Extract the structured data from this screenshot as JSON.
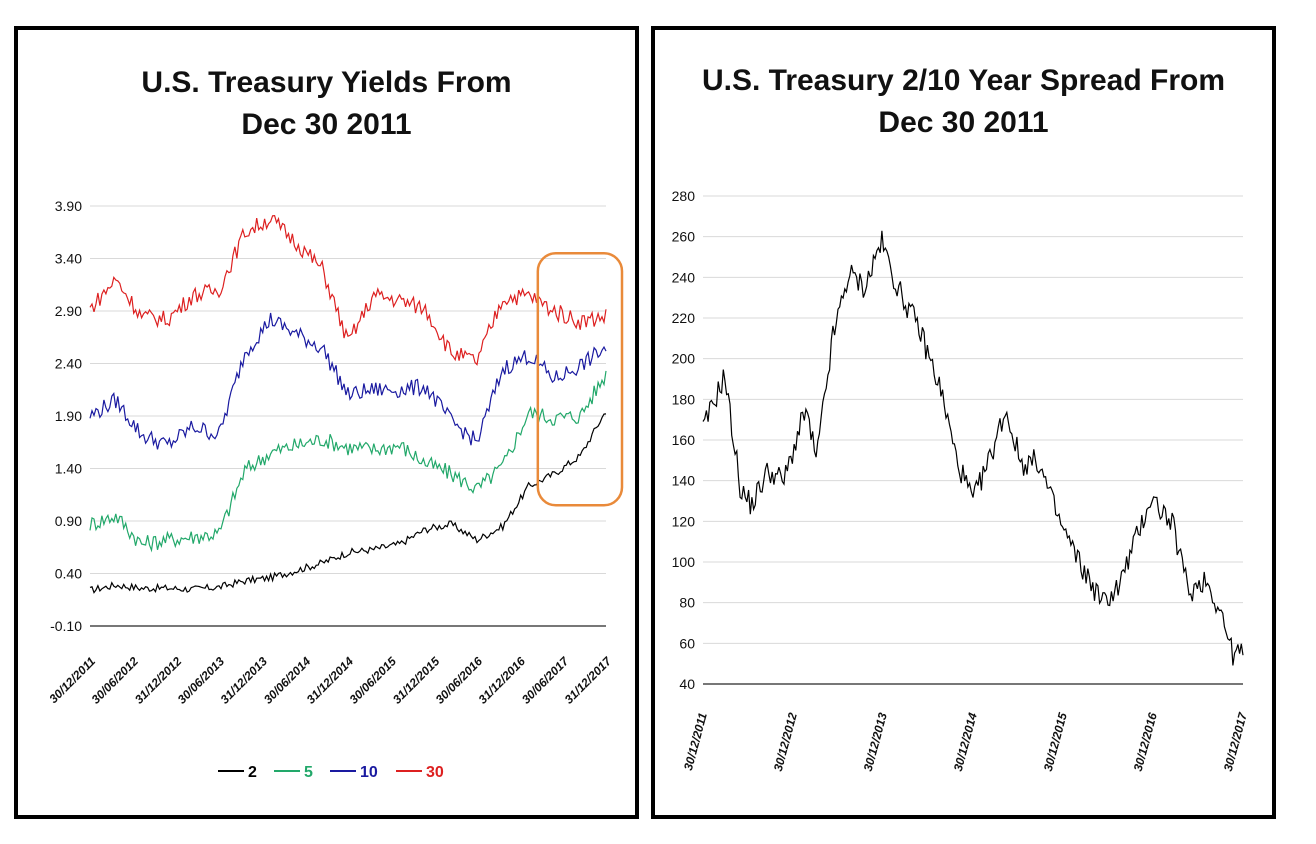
{
  "chart_data": [
    {
      "type": "line",
      "title_line1": "U.S. Treasury Yields From",
      "title_line2": "Dec 30 2011",
      "xlabel": "",
      "ylabel": "",
      "ylim": [
        -0.1,
        3.9
      ],
      "y_ticks": [
        "3.90",
        "3.40",
        "2.90",
        "2.40",
        "1.90",
        "1.40",
        "0.90",
        "0.40",
        "-0.10"
      ],
      "y_tick_values": [
        3.9,
        3.4,
        2.9,
        2.4,
        1.9,
        1.4,
        0.9,
        0.4,
        -0.1
      ],
      "x_ticks": [
        "30/12/2011",
        "30/06/2012",
        "31/12/2012",
        "30/06/2013",
        "31/12/2013",
        "30/06/2014",
        "31/12/2014",
        "30/06/2015",
        "31/12/2015",
        "30/06/2016",
        "31/12/2016",
        "30/06/2017",
        "31/12/2017"
      ],
      "x_tick_fractions": [
        0,
        0.083,
        0.167,
        0.25,
        0.333,
        0.417,
        0.5,
        0.583,
        0.667,
        0.75,
        0.833,
        0.917,
        1.0
      ],
      "grid": true,
      "legend_position": "bottom",
      "highlight_box": {
        "from": 0.895,
        "to": 1.0,
        "y_from": 1.05,
        "y_to": 3.45,
        "color": "#e98a3a"
      },
      "series": [
        {
          "name": "2",
          "color": "#000000",
          "x": [
            0,
            0.05,
            0.1,
            0.15,
            0.2,
            0.25,
            0.3,
            0.35,
            0.4,
            0.45,
            0.5,
            0.55,
            0.6,
            0.65,
            0.7,
            0.75,
            0.8,
            0.85,
            0.9,
            0.95,
            1.0
          ],
          "values": [
            0.24,
            0.29,
            0.26,
            0.26,
            0.25,
            0.27,
            0.33,
            0.36,
            0.43,
            0.5,
            0.6,
            0.63,
            0.68,
            0.82,
            0.87,
            0.72,
            0.85,
            1.23,
            1.35,
            1.52,
            1.95
          ]
        },
        {
          "name": "5",
          "color": "#22a86a",
          "x": [
            0,
            0.05,
            0.1,
            0.15,
            0.2,
            0.25,
            0.3,
            0.35,
            0.4,
            0.45,
            0.5,
            0.55,
            0.6,
            0.65,
            0.7,
            0.75,
            0.8,
            0.85,
            0.9,
            0.95,
            1.0
          ],
          "values": [
            0.87,
            0.95,
            0.68,
            0.72,
            0.75,
            0.78,
            1.38,
            1.55,
            1.62,
            1.68,
            1.6,
            1.58,
            1.62,
            1.45,
            1.35,
            1.2,
            1.42,
            1.93,
            1.88,
            1.9,
            2.3
          ]
        },
        {
          "name": "10",
          "color": "#1a1aa0",
          "x": [
            0,
            0.05,
            0.1,
            0.15,
            0.2,
            0.25,
            0.3,
            0.35,
            0.4,
            0.45,
            0.5,
            0.55,
            0.6,
            0.65,
            0.7,
            0.75,
            0.8,
            0.85,
            0.9,
            0.95,
            1.0
          ],
          "values": [
            1.9,
            2.05,
            1.72,
            1.62,
            1.8,
            1.72,
            2.5,
            2.82,
            2.68,
            2.55,
            2.1,
            2.15,
            2.15,
            2.18,
            1.85,
            1.65,
            2.35,
            2.48,
            2.25,
            2.38,
            2.55
          ]
        },
        {
          "name": "30",
          "color": "#dd2020",
          "x": [
            0,
            0.05,
            0.1,
            0.15,
            0.2,
            0.25,
            0.3,
            0.35,
            0.4,
            0.45,
            0.5,
            0.55,
            0.6,
            0.65,
            0.7,
            0.75,
            0.8,
            0.85,
            0.9,
            0.95,
            1.0
          ],
          "values": [
            2.92,
            3.2,
            2.85,
            2.82,
            3.05,
            3.1,
            3.65,
            3.78,
            3.55,
            3.3,
            2.6,
            3.05,
            3.0,
            2.92,
            2.5,
            2.42,
            3.02,
            3.05,
            2.9,
            2.8,
            2.85
          ]
        }
      ]
    },
    {
      "type": "line",
      "title_line1": "U.S. Treasury 2/10 Year Spread From",
      "title_line2": "Dec 30 2011",
      "xlabel": "",
      "ylabel": "",
      "ylim": [
        40,
        280
      ],
      "y_ticks": [
        "280",
        "260",
        "240",
        "220",
        "200",
        "180",
        "160",
        "140",
        "120",
        "100",
        "80",
        "60",
        "40"
      ],
      "y_tick_values": [
        280,
        260,
        240,
        220,
        200,
        180,
        160,
        140,
        120,
        100,
        80,
        60,
        40
      ],
      "x_ticks": [
        "30/12/2011",
        "30/12/2012",
        "30/12/2013",
        "30/12/2014",
        "30/12/2015",
        "30/12/2016",
        "30/12/2017"
      ],
      "x_tick_fractions": [
        0,
        0.1667,
        0.3333,
        0.5,
        0.6667,
        0.8333,
        1.0
      ],
      "grid": true,
      "series": [
        {
          "name": "",
          "color": "#000000",
          "x": [
            0,
            0.04,
            0.07,
            0.09,
            0.12,
            0.15,
            0.19,
            0.21,
            0.24,
            0.27,
            0.3,
            0.33,
            0.36,
            0.4,
            0.44,
            0.47,
            0.5,
            0.53,
            0.56,
            0.59,
            0.62,
            0.66,
            0.7,
            0.74,
            0.77,
            0.8,
            0.83,
            0.87,
            0.9,
            0.93,
            0.96,
            0.98,
            1.0
          ],
          "values": [
            165,
            192,
            135,
            128,
            145,
            140,
            175,
            150,
            210,
            242,
            235,
            258,
            235,
            215,
            185,
            150,
            130,
            150,
            175,
            148,
            150,
            120,
            98,
            80,
            88,
            110,
            132,
            118,
            85,
            92,
            75,
            55,
            55
          ]
        }
      ]
    }
  ]
}
